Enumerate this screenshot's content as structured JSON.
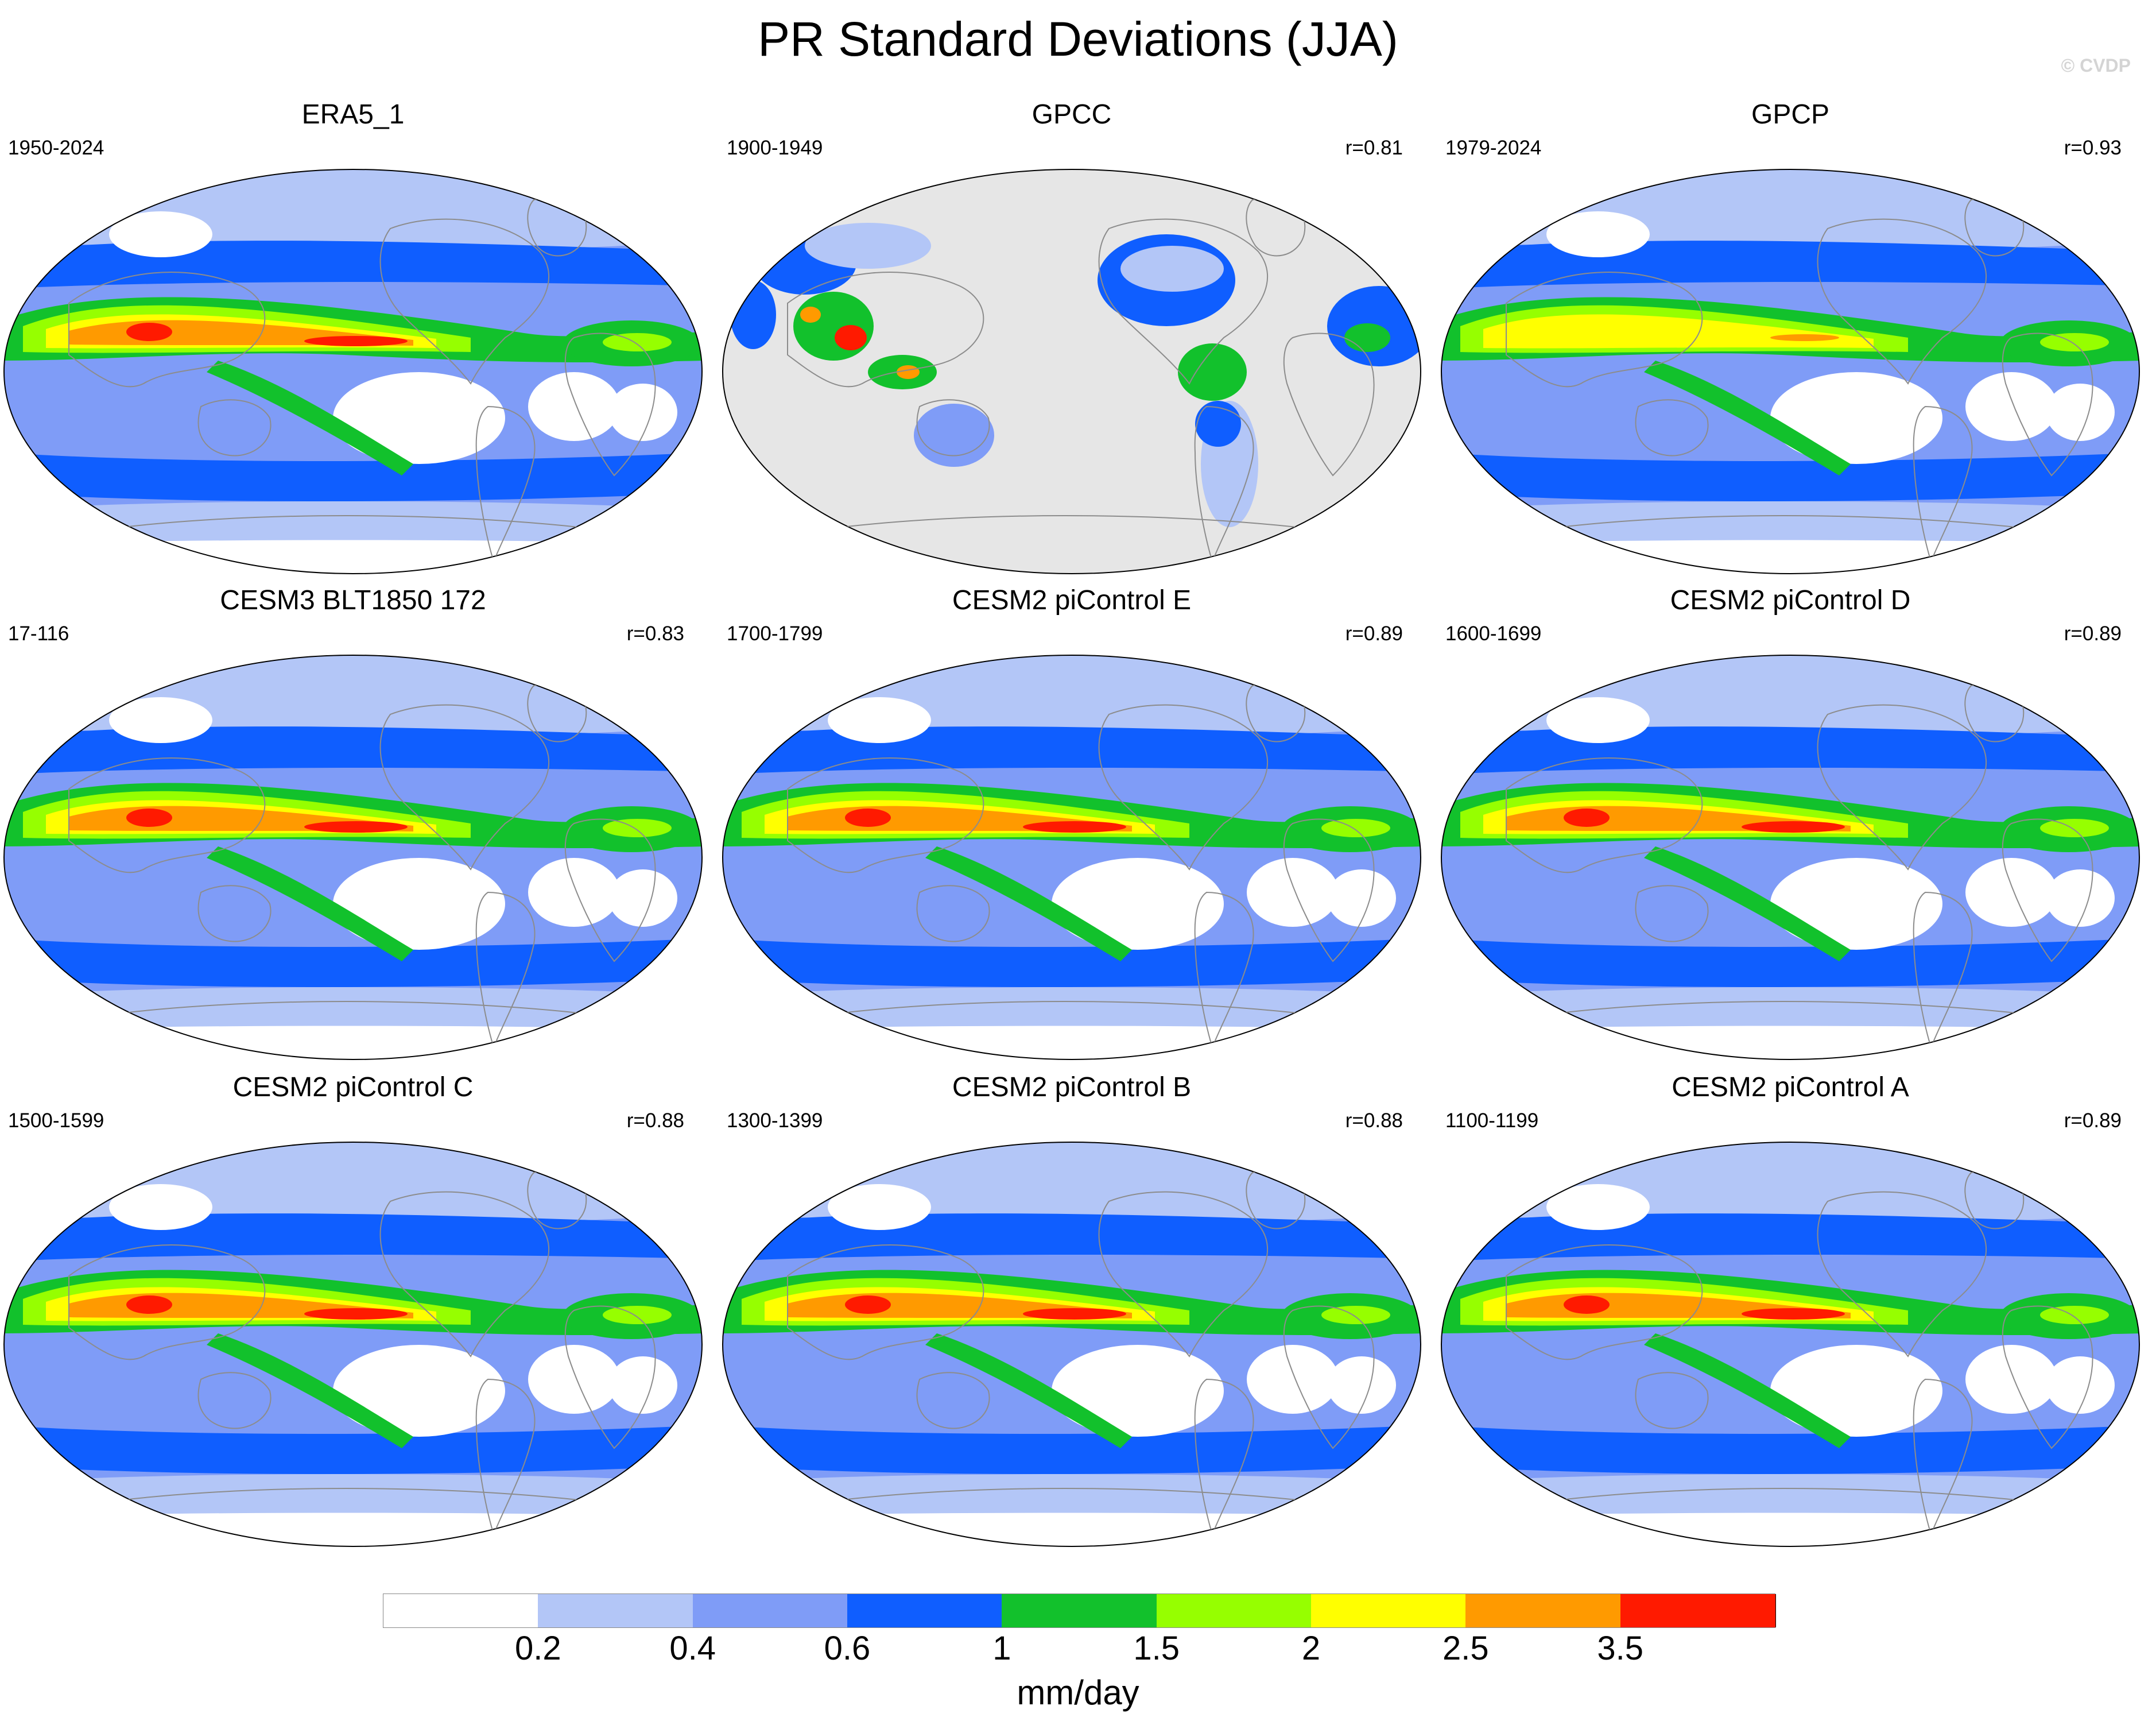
{
  "title": "PR Standard Deviations (JJA)",
  "copyright": "© CVDP",
  "colors": {
    "ocean_grey": "#e6e6e6",
    "outline": "#8c8c8c",
    "levels": [
      "#ffffff",
      "#b3c6f7",
      "#7f9cf7",
      "#0f5eff",
      "#12c12c",
      "#96ff00",
      "#ffff00",
      "#ff9a00",
      "#ff1a00"
    ]
  },
  "panels": [
    {
      "id": "era5",
      "title": "ERA5_1",
      "period": "1950-2024",
      "corr": "",
      "type": "reanalysis",
      "intensity": 0.9
    },
    {
      "id": "gpcc",
      "title": "GPCC",
      "period": "1900-1949",
      "corr": "r=0.81",
      "type": "land-only",
      "intensity": 0.7
    },
    {
      "id": "gpcp",
      "title": "GPCP",
      "period": "1979-2024",
      "corr": "r=0.93",
      "type": "reanalysis",
      "intensity": 0.75
    },
    {
      "id": "cesm3",
      "title": "CESM3 BLT1850 172",
      "period": "17-116",
      "corr": "r=0.83",
      "type": "model",
      "intensity": 1.0
    },
    {
      "id": "picontrol-e",
      "title": "CESM2 piControl E",
      "period": "1700-1799",
      "corr": "r=0.89",
      "type": "model",
      "intensity": 1.0
    },
    {
      "id": "picontrol-d",
      "title": "CESM2 piControl D",
      "period": "1600-1699",
      "corr": "r=0.89",
      "type": "model",
      "intensity": 1.0
    },
    {
      "id": "picontrol-c",
      "title": "CESM2 piControl C",
      "period": "1500-1599",
      "corr": "r=0.88",
      "type": "model",
      "intensity": 1.0
    },
    {
      "id": "picontrol-b",
      "title": "CESM2 piControl B",
      "period": "1300-1399",
      "corr": "r=0.88",
      "type": "model",
      "intensity": 1.0
    },
    {
      "id": "picontrol-a",
      "title": "CESM2 piControl A",
      "period": "1100-1199",
      "corr": "r=0.89",
      "type": "model",
      "intensity": 1.0
    }
  ],
  "colorbar": {
    "tick_labels": [
      "0.2",
      "0.4",
      "0.6",
      "1",
      "1.5",
      "2",
      "2.5",
      "3.5"
    ],
    "units": "mm/day"
  }
}
